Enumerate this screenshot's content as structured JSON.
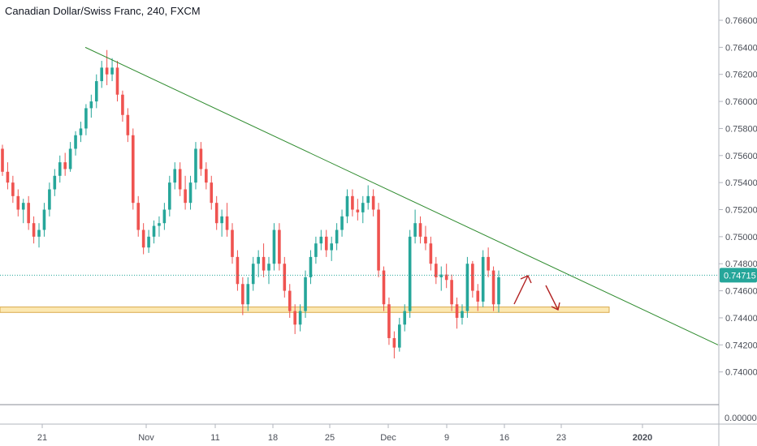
{
  "header": {
    "title": "Canadian Dollar/Swiss Franc, 240, FXCM"
  },
  "colors": {
    "up": "#26a69a",
    "down": "#ef5350",
    "trendline": "#2e8b2e",
    "support_fill": "#fce8b2",
    "support_border": "#d9a94b",
    "arrow": "#b22222",
    "price_tag": "#26a69a",
    "grid": "#cfd2d8",
    "axis_text": "#4a4e57"
  },
  "chart_data": {
    "type": "candlestick",
    "title": "Canadian Dollar/Swiss Franc, 240, FXCM",
    "ylim": [
      0.7389,
      0.7669
    ],
    "y_ticks": [
      "0.76600",
      "0.76400",
      "0.76200",
      "0.76000",
      "0.75800",
      "0.75600",
      "0.75400",
      "0.75200",
      "0.75000",
      "0.74800",
      "0.74600",
      "0.74400",
      "0.74200",
      "0.74000"
    ],
    "y_tick_values": [
      0.766,
      0.764,
      0.762,
      0.76,
      0.758,
      0.756,
      0.754,
      0.752,
      0.75,
      0.748,
      0.746,
      0.744,
      0.742,
      0.74
    ],
    "lower_pane_tick": "0.00000",
    "x_ticks": [
      "21",
      "Nov",
      "11",
      "18",
      "25",
      "Dec",
      "9",
      "16",
      "23",
      "2020"
    ],
    "current_price": "0.74715",
    "current_price_value": 0.74715,
    "support_zone": [
      0.7444,
      0.7448
    ],
    "trendline": {
      "from": [
        "Oct 25",
        0.764
      ],
      "to": [
        "Dec 31",
        0.742
      ]
    },
    "candles": [
      [
        0.7565,
        0.7568,
        0.7545,
        0.7548
      ],
      [
        0.7548,
        0.7555,
        0.7535,
        0.754
      ],
      [
        0.754,
        0.7545,
        0.7525,
        0.753
      ],
      [
        0.753,
        0.7535,
        0.7515,
        0.752
      ],
      [
        0.752,
        0.7528,
        0.751,
        0.7525
      ],
      [
        0.7525,
        0.753,
        0.7505,
        0.751
      ],
      [
        0.751,
        0.7515,
        0.7495,
        0.75
      ],
      [
        0.75,
        0.751,
        0.7492,
        0.7505
      ],
      [
        0.7505,
        0.7525,
        0.75,
        0.752
      ],
      [
        0.752,
        0.754,
        0.7515,
        0.7535
      ],
      [
        0.7535,
        0.755,
        0.753,
        0.7545
      ],
      [
        0.7545,
        0.756,
        0.754,
        0.7555
      ],
      [
        0.7555,
        0.7562,
        0.7545,
        0.755
      ],
      [
        0.755,
        0.757,
        0.7548,
        0.7565
      ],
      [
        0.7565,
        0.7578,
        0.756,
        0.7575
      ],
      [
        0.7575,
        0.7585,
        0.757,
        0.758
      ],
      [
        0.758,
        0.7598,
        0.7575,
        0.7595
      ],
      [
        0.7595,
        0.7605,
        0.7588,
        0.76
      ],
      [
        0.76,
        0.762,
        0.7595,
        0.7615
      ],
      [
        0.7615,
        0.763,
        0.761,
        0.7625
      ],
      [
        0.7625,
        0.7638,
        0.7612,
        0.762
      ],
      [
        0.762,
        0.7632,
        0.7615,
        0.7625
      ],
      [
        0.7625,
        0.763,
        0.76,
        0.7605
      ],
      [
        0.7605,
        0.7608,
        0.7585,
        0.759
      ],
      [
        0.759,
        0.7595,
        0.757,
        0.7575
      ],
      [
        0.7575,
        0.758,
        0.752,
        0.7525
      ],
      [
        0.7525,
        0.753,
        0.75,
        0.7505
      ],
      [
        0.7505,
        0.751,
        0.7487,
        0.7492
      ],
      [
        0.7492,
        0.7505,
        0.7488,
        0.75
      ],
      [
        0.75,
        0.7512,
        0.7495,
        0.7508
      ],
      [
        0.7508,
        0.7515,
        0.75,
        0.751
      ],
      [
        0.751,
        0.7525,
        0.7505,
        0.752
      ],
      [
        0.752,
        0.7545,
        0.7515,
        0.754
      ],
      [
        0.754,
        0.7555,
        0.7535,
        0.755
      ],
      [
        0.755,
        0.7555,
        0.753,
        0.7535
      ],
      [
        0.7535,
        0.7545,
        0.752,
        0.7525
      ],
      [
        0.7525,
        0.7545,
        0.752,
        0.754
      ],
      [
        0.754,
        0.757,
        0.7535,
        0.7565
      ],
      [
        0.7565,
        0.757,
        0.7545,
        0.755
      ],
      [
        0.755,
        0.7555,
        0.7535,
        0.754
      ],
      [
        0.754,
        0.7545,
        0.752,
        0.7525
      ],
      [
        0.7525,
        0.753,
        0.7505,
        0.751
      ],
      [
        0.751,
        0.752,
        0.75,
        0.7515
      ],
      [
        0.7515,
        0.7525,
        0.75,
        0.7505
      ],
      [
        0.7505,
        0.751,
        0.748,
        0.7485
      ],
      [
        0.7485,
        0.749,
        0.746,
        0.7465
      ],
      [
        0.7465,
        0.747,
        0.7442,
        0.745
      ],
      [
        0.745,
        0.747,
        0.7445,
        0.7465
      ],
      [
        0.7465,
        0.7485,
        0.746,
        0.748
      ],
      [
        0.748,
        0.749,
        0.747,
        0.7485
      ],
      [
        0.7485,
        0.7495,
        0.747,
        0.7475
      ],
      [
        0.7475,
        0.7485,
        0.7465,
        0.748
      ],
      [
        0.748,
        0.751,
        0.7475,
        0.7505
      ],
      [
        0.7505,
        0.751,
        0.7475,
        0.748
      ],
      [
        0.748,
        0.7485,
        0.7455,
        0.746
      ],
      [
        0.746,
        0.7465,
        0.744,
        0.7445
      ],
      [
        0.7445,
        0.745,
        0.7428,
        0.7435
      ],
      [
        0.7435,
        0.745,
        0.743,
        0.7445
      ],
      [
        0.7445,
        0.7475,
        0.744,
        0.747
      ],
      [
        0.747,
        0.749,
        0.7465,
        0.7485
      ],
      [
        0.7485,
        0.75,
        0.748,
        0.7495
      ],
      [
        0.7495,
        0.7505,
        0.749,
        0.75
      ],
      [
        0.75,
        0.7505,
        0.7485,
        0.749
      ],
      [
        0.749,
        0.75,
        0.7482,
        0.7495
      ],
      [
        0.7495,
        0.751,
        0.749,
        0.7505
      ],
      [
        0.7505,
        0.752,
        0.75,
        0.7515
      ],
      [
        0.7515,
        0.7535,
        0.751,
        0.753
      ],
      [
        0.753,
        0.7535,
        0.7515,
        0.752
      ],
      [
        0.752,
        0.7528,
        0.7512,
        0.7518
      ],
      [
        0.7518,
        0.753,
        0.751,
        0.7525
      ],
      [
        0.7525,
        0.7538,
        0.752,
        0.753
      ],
      [
        0.753,
        0.7535,
        0.7515,
        0.752
      ],
      [
        0.752,
        0.7525,
        0.747,
        0.7475
      ],
      [
        0.7475,
        0.7478,
        0.7445,
        0.745
      ],
      [
        0.745,
        0.7455,
        0.742,
        0.7425
      ],
      [
        0.7425,
        0.743,
        0.741,
        0.7418
      ],
      [
        0.7418,
        0.744,
        0.7415,
        0.7435
      ],
      [
        0.7435,
        0.745,
        0.743,
        0.7445
      ],
      [
        0.7445,
        0.7505,
        0.744,
        0.75
      ],
      [
        0.75,
        0.752,
        0.7495,
        0.751
      ],
      [
        0.751,
        0.7515,
        0.7495,
        0.75
      ],
      [
        0.75,
        0.7508,
        0.749,
        0.7495
      ],
      [
        0.7495,
        0.75,
        0.7475,
        0.748
      ],
      [
        0.748,
        0.7485,
        0.7465,
        0.747
      ],
      [
        0.747,
        0.7478,
        0.746,
        0.7472
      ],
      [
        0.7472,
        0.748,
        0.7462,
        0.7468
      ],
      [
        0.7468,
        0.7472,
        0.7445,
        0.745
      ],
      [
        0.745,
        0.7455,
        0.7432,
        0.744
      ],
      [
        0.744,
        0.745,
        0.7435,
        0.7445
      ],
      [
        0.7445,
        0.7485,
        0.744,
        0.748
      ],
      [
        0.748,
        0.7482,
        0.7455,
        0.746
      ],
      [
        0.746,
        0.7465,
        0.7445,
        0.7452
      ],
      [
        0.7452,
        0.749,
        0.7448,
        0.7485
      ],
      [
        0.7485,
        0.7492,
        0.747,
        0.7475
      ],
      [
        0.7475,
        0.7478,
        0.7445,
        0.745
      ],
      [
        0.745,
        0.7475,
        0.7444,
        0.747
      ]
    ]
  }
}
